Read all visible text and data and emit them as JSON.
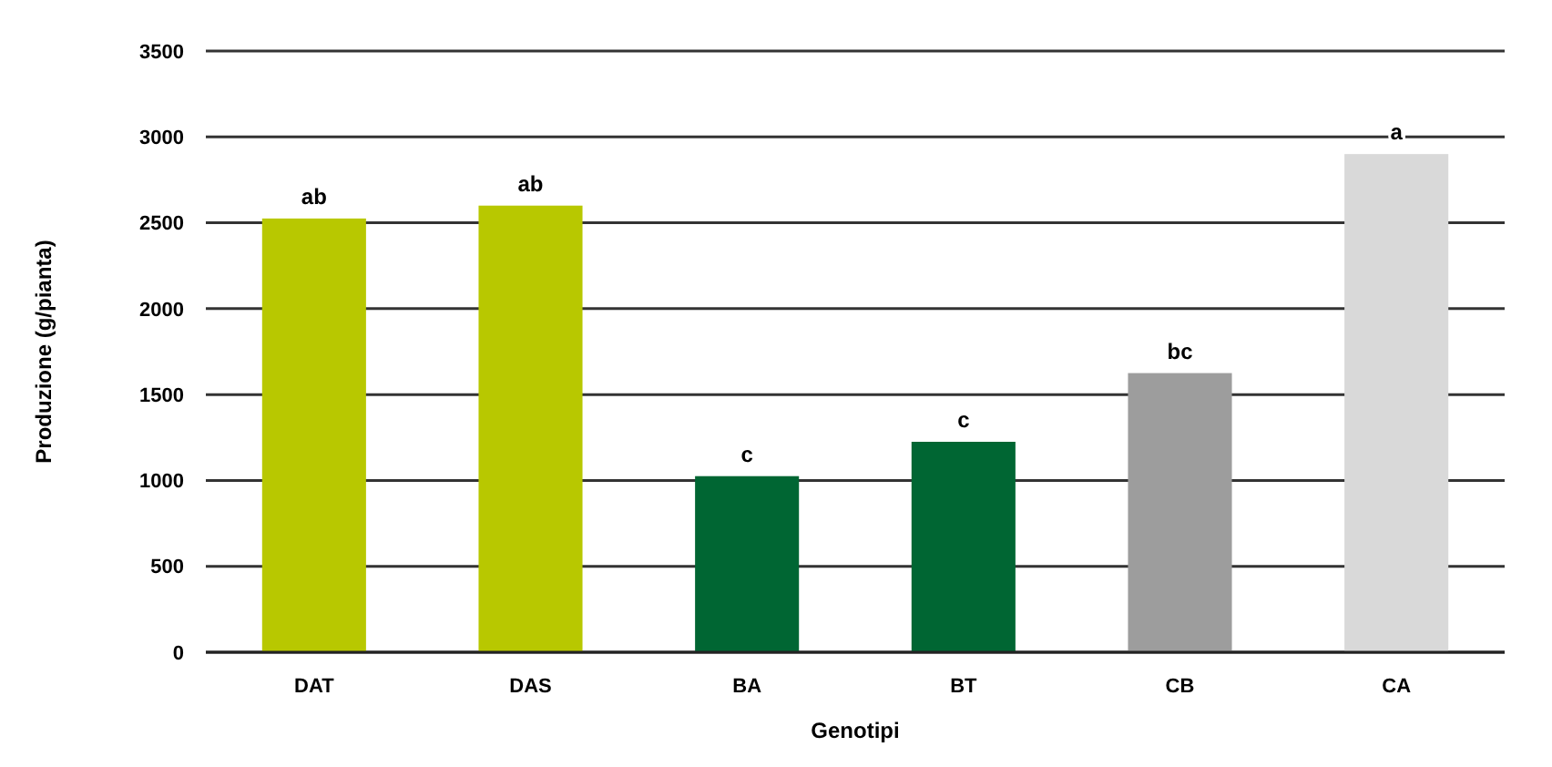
{
  "chart_data": {
    "type": "bar",
    "xlabel": "Genotipi",
    "ylabel": "Produzione (g/pianta)",
    "categories": [
      "DAT",
      "DAS",
      "BA",
      "BT",
      "CB",
      "CA"
    ],
    "values": [
      2525,
      2600,
      1025,
      1225,
      1625,
      2900
    ],
    "colors": [
      "#b8c800",
      "#b8c800",
      "#006633",
      "#006633",
      "#9d9d9d",
      "#d9d9d9"
    ],
    "ylim": [
      0,
      3500
    ],
    "yticks": [
      0,
      500,
      1000,
      1500,
      2000,
      2500,
      3000,
      3500
    ],
    "grid": "y",
    "annotations": [
      {
        "text": "ab",
        "x": "DAT",
        "y": 2525
      },
      {
        "text": "ab",
        "x": "DAS",
        "y": 2600
      },
      {
        "text": "c",
        "x": "BA",
        "y": 1025
      },
      {
        "text": "c",
        "x": "BT",
        "y": 1225
      },
      {
        "text": "bc",
        "x": "CB",
        "y": 1625
      },
      {
        "text": "a",
        "x": "CA",
        "y": 2900
      }
    ]
  }
}
